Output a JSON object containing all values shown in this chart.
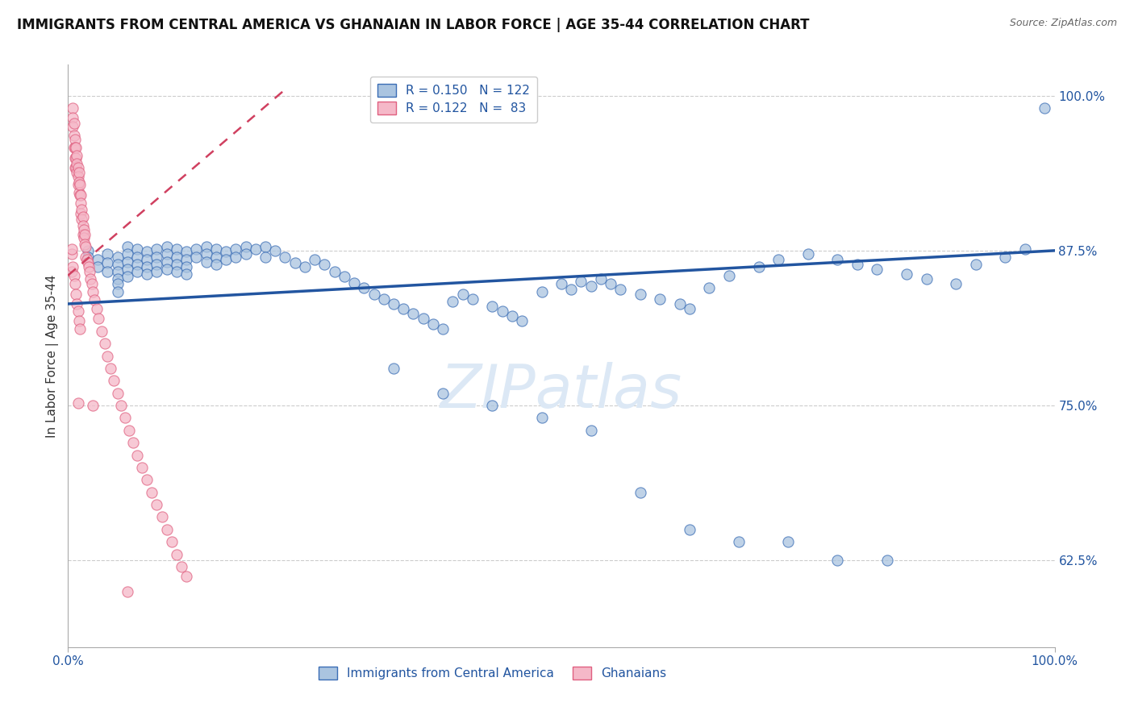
{
  "title": "IMMIGRANTS FROM CENTRAL AMERICA VS GHANAIAN IN LABOR FORCE | AGE 35-44 CORRELATION CHART",
  "source": "Source: ZipAtlas.com",
  "ylabel": "In Labor Force | Age 35-44",
  "xlim": [
    0.0,
    1.0
  ],
  "ylim": [
    0.555,
    1.025
  ],
  "yticks": [
    0.625,
    0.75,
    0.875,
    1.0
  ],
  "ytick_labels": [
    "62.5%",
    "75.0%",
    "87.5%",
    "100.0%"
  ],
  "legend_blue_r": "R = 0.150",
  "legend_blue_n": "N = 122",
  "legend_pink_r": "R = 0.122",
  "legend_pink_n": "N =  83",
  "blue_color": "#aac4e0",
  "blue_edge_color": "#3a6db5",
  "blue_line_color": "#2255a0",
  "pink_color": "#f5b8c8",
  "pink_edge_color": "#e06080",
  "pink_line_color": "#d04060",
  "text_color": "#2255a0",
  "watermark": "ZIPatlas",
  "watermark_color": "#dce8f5",
  "blue_trend_x": [
    0.0,
    1.0
  ],
  "blue_trend_y": [
    0.832,
    0.875
  ],
  "pink_trend_x": [
    0.0,
    0.22
  ],
  "pink_trend_y": [
    0.855,
    1.005
  ],
  "blue_scatter_x": [
    0.02,
    0.02,
    0.03,
    0.03,
    0.04,
    0.04,
    0.04,
    0.05,
    0.05,
    0.05,
    0.05,
    0.05,
    0.05,
    0.06,
    0.06,
    0.06,
    0.06,
    0.06,
    0.07,
    0.07,
    0.07,
    0.07,
    0.08,
    0.08,
    0.08,
    0.08,
    0.09,
    0.09,
    0.09,
    0.09,
    0.1,
    0.1,
    0.1,
    0.1,
    0.11,
    0.11,
    0.11,
    0.11,
    0.12,
    0.12,
    0.12,
    0.12,
    0.13,
    0.13,
    0.14,
    0.14,
    0.14,
    0.15,
    0.15,
    0.15,
    0.16,
    0.16,
    0.17,
    0.17,
    0.18,
    0.18,
    0.19,
    0.2,
    0.2,
    0.21,
    0.22,
    0.23,
    0.24,
    0.25,
    0.26,
    0.27,
    0.28,
    0.29,
    0.3,
    0.31,
    0.32,
    0.33,
    0.34,
    0.35,
    0.36,
    0.37,
    0.38,
    0.39,
    0.4,
    0.41,
    0.43,
    0.44,
    0.45,
    0.46,
    0.48,
    0.5,
    0.51,
    0.52,
    0.53,
    0.54,
    0.55,
    0.56,
    0.58,
    0.6,
    0.62,
    0.63,
    0.65,
    0.67,
    0.7,
    0.72,
    0.75,
    0.78,
    0.8,
    0.82,
    0.85,
    0.87,
    0.9,
    0.92,
    0.95,
    0.97,
    0.99,
    0.33,
    0.38,
    0.43,
    0.48,
    0.53,
    0.58,
    0.63,
    0.68,
    0.73,
    0.78,
    0.83
  ],
  "blue_scatter_y": [
    0.875,
    0.87,
    0.868,
    0.862,
    0.872,
    0.865,
    0.858,
    0.87,
    0.864,
    0.858,
    0.852,
    0.848,
    0.842,
    0.878,
    0.872,
    0.866,
    0.86,
    0.854,
    0.876,
    0.87,
    0.864,
    0.858,
    0.874,
    0.868,
    0.862,
    0.856,
    0.876,
    0.87,
    0.864,
    0.858,
    0.878,
    0.872,
    0.866,
    0.86,
    0.876,
    0.87,
    0.864,
    0.858,
    0.874,
    0.868,
    0.862,
    0.856,
    0.876,
    0.87,
    0.878,
    0.872,
    0.866,
    0.876,
    0.87,
    0.864,
    0.874,
    0.868,
    0.876,
    0.87,
    0.878,
    0.872,
    0.876,
    0.878,
    0.87,
    0.875,
    0.87,
    0.865,
    0.862,
    0.868,
    0.864,
    0.858,
    0.854,
    0.849,
    0.845,
    0.84,
    0.836,
    0.832,
    0.828,
    0.824,
    0.82,
    0.816,
    0.812,
    0.834,
    0.84,
    0.836,
    0.83,
    0.826,
    0.822,
    0.818,
    0.842,
    0.848,
    0.844,
    0.85,
    0.846,
    0.852,
    0.848,
    0.844,
    0.84,
    0.836,
    0.832,
    0.828,
    0.845,
    0.855,
    0.862,
    0.868,
    0.872,
    0.868,
    0.864,
    0.86,
    0.856,
    0.852,
    0.848,
    0.864,
    0.87,
    0.876,
    0.99,
    0.78,
    0.76,
    0.75,
    0.74,
    0.73,
    0.68,
    0.65,
    0.64,
    0.64,
    0.625,
    0.625
  ],
  "pink_scatter_x": [
    0.004,
    0.004,
    0.005,
    0.005,
    0.005,
    0.006,
    0.006,
    0.006,
    0.007,
    0.007,
    0.007,
    0.007,
    0.008,
    0.008,
    0.008,
    0.009,
    0.009,
    0.009,
    0.01,
    0.01,
    0.01,
    0.011,
    0.011,
    0.011,
    0.012,
    0.012,
    0.013,
    0.013,
    0.013,
    0.014,
    0.014,
    0.015,
    0.015,
    0.015,
    0.016,
    0.016,
    0.017,
    0.017,
    0.018,
    0.018,
    0.019,
    0.02,
    0.021,
    0.022,
    0.023,
    0.024,
    0.025,
    0.027,
    0.029,
    0.031,
    0.034,
    0.037,
    0.04,
    0.043,
    0.046,
    0.05,
    0.054,
    0.058,
    0.062,
    0.066,
    0.07,
    0.075,
    0.08,
    0.085,
    0.09,
    0.095,
    0.1,
    0.105,
    0.11,
    0.115,
    0.12,
    0.004,
    0.005,
    0.006,
    0.007,
    0.008,
    0.009,
    0.01,
    0.011,
    0.012,
    0.01,
    0.025,
    0.06
  ],
  "pink_scatter_y": [
    0.872,
    0.876,
    0.99,
    0.982,
    0.975,
    0.978,
    0.968,
    0.958,
    0.965,
    0.958,
    0.95,
    0.942,
    0.958,
    0.95,
    0.942,
    0.952,
    0.945,
    0.938,
    0.942,
    0.935,
    0.928,
    0.938,
    0.93,
    0.922,
    0.928,
    0.92,
    0.92,
    0.913,
    0.905,
    0.908,
    0.9,
    0.902,
    0.895,
    0.888,
    0.892,
    0.885,
    0.888,
    0.88,
    0.878,
    0.87,
    0.868,
    0.865,
    0.862,
    0.858,
    0.852,
    0.848,
    0.842,
    0.835,
    0.828,
    0.82,
    0.81,
    0.8,
    0.79,
    0.78,
    0.77,
    0.76,
    0.75,
    0.74,
    0.73,
    0.72,
    0.71,
    0.7,
    0.69,
    0.68,
    0.67,
    0.66,
    0.65,
    0.64,
    0.63,
    0.62,
    0.612,
    0.858,
    0.862,
    0.855,
    0.848,
    0.84,
    0.832,
    0.826,
    0.818,
    0.812,
    0.752,
    0.75,
    0.6
  ]
}
